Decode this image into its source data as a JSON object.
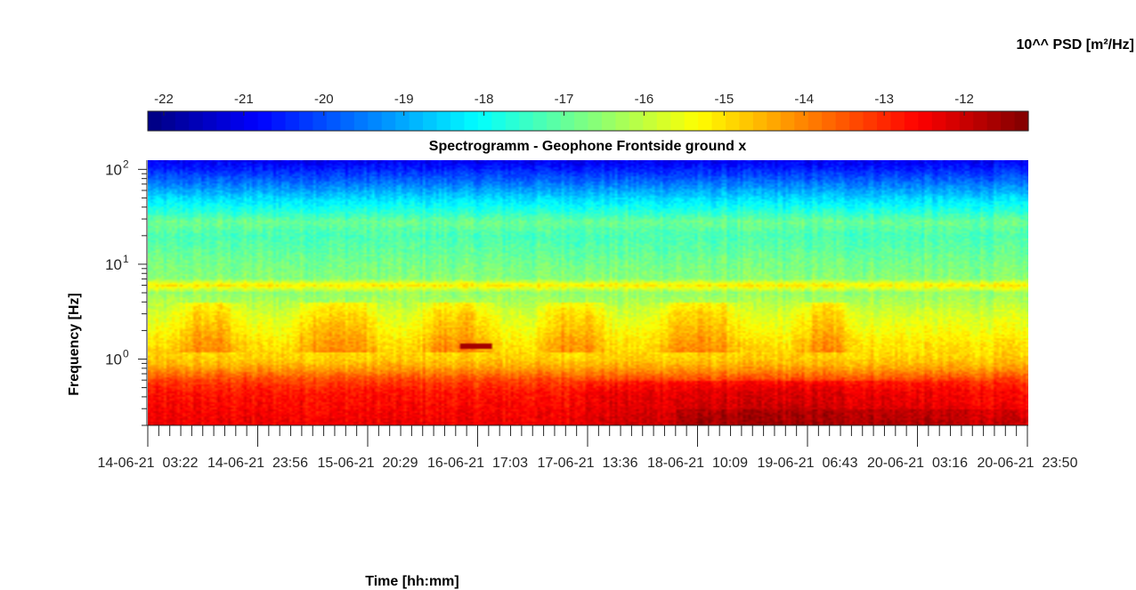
{
  "chart_data": {
    "type": "heatmap",
    "title": "Spectrogramm - Geophone Frontside ground x",
    "xlabel": "Time [hh:mm]",
    "ylabel": "Frequency [Hz]",
    "y_scale": "log",
    "ylim": [
      0.2,
      125
    ],
    "y_ticks": [
      1,
      10,
      100
    ],
    "y_tick_labels": [
      {
        "base": "10",
        "exp": "0"
      },
      {
        "base": "10",
        "exp": "1"
      },
      {
        "base": "10",
        "exp": "2"
      }
    ],
    "x_tick_labels": [
      "14-06-21  03:22",
      "14-06-21  23:56",
      "15-06-21  20:29",
      "16-06-21  17:03",
      "17-06-21  13:36",
      "18-06-21  10:09",
      "19-06-21  06:43",
      "20-06-21  03:16",
      "20-06-21  23:50"
    ],
    "colorbar": {
      "label": "10^^ PSD [m²/Hz]",
      "colormap": "jet",
      "range": [
        -22.2,
        -11.2
      ],
      "ticks": [
        -22,
        -21,
        -20,
        -19,
        -18,
        -17,
        -16,
        -15,
        -14,
        -13,
        -12
      ],
      "tick_labels": [
        "-22",
        "-21",
        "-20",
        "-19",
        "-18",
        "-17",
        "-16",
        "-15",
        "-14",
        "-13",
        "-12"
      ]
    },
    "spectral_profile": {
      "frequency_hz": [
        0.2,
        0.3,
        0.45,
        0.6,
        0.8,
        1.0,
        1.5,
        2.0,
        3.0,
        5.0,
        6.0,
        7.0,
        10,
        15,
        20,
        28,
        35,
        50,
        70,
        100,
        125
      ],
      "log10_psd": [
        -12.4,
        -12.6,
        -12.8,
        -13.3,
        -14.3,
        -14.8,
        -15.1,
        -15.4,
        -15.8,
        -16.5,
        -15.1,
        -16.6,
        -16.8,
        -17.1,
        -17.3,
        -16.9,
        -17.6,
        -18.5,
        -19.5,
        -20.5,
        -21.0
      ]
    },
    "daytime_activity_band_hz": [
      1.5,
      3.5
    ],
    "daytime_activity_windows": [
      [
        "14-06-21",
        "15-06-21"
      ],
      [
        "15-06-21",
        "16-06-21"
      ],
      [
        "16-06-21",
        "16-06-21"
      ],
      [
        "17-06-21",
        "17-06-21"
      ],
      [
        "18-06-21",
        "18-06-21"
      ],
      [
        "19-06-21",
        "19-06-21"
      ]
    ],
    "event": {
      "frequency_hz": 1.35,
      "log10_psd": -11.6,
      "date": "16-06-21"
    }
  },
  "colors": {
    "axis": "#262626",
    "title": "#000000"
  }
}
